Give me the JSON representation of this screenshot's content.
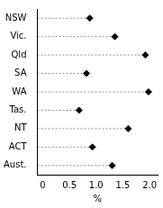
{
  "chart_data": {
    "type": "dot",
    "orientation": "horizontal",
    "categories": [
      "NSW",
      "Vic.",
      "Qld",
      "SA",
      "WA",
      "Tas.",
      "NT",
      "ACT",
      "Aust."
    ],
    "values": [
      0.88,
      1.35,
      1.92,
      0.82,
      1.98,
      0.68,
      1.6,
      0.93,
      1.3
    ],
    "color": "#000000",
    "marker": "diamond",
    "line_style": "dashed",
    "xlabel": "%",
    "xlim": [
      -0.1,
      2.15
    ],
    "xticks": [
      0,
      0.5,
      {
        "value": 1,
        "label": "1.0"
      },
      1.5,
      {
        "value": 2,
        "label": "2.0"
      }
    ],
    "grid": false
  }
}
